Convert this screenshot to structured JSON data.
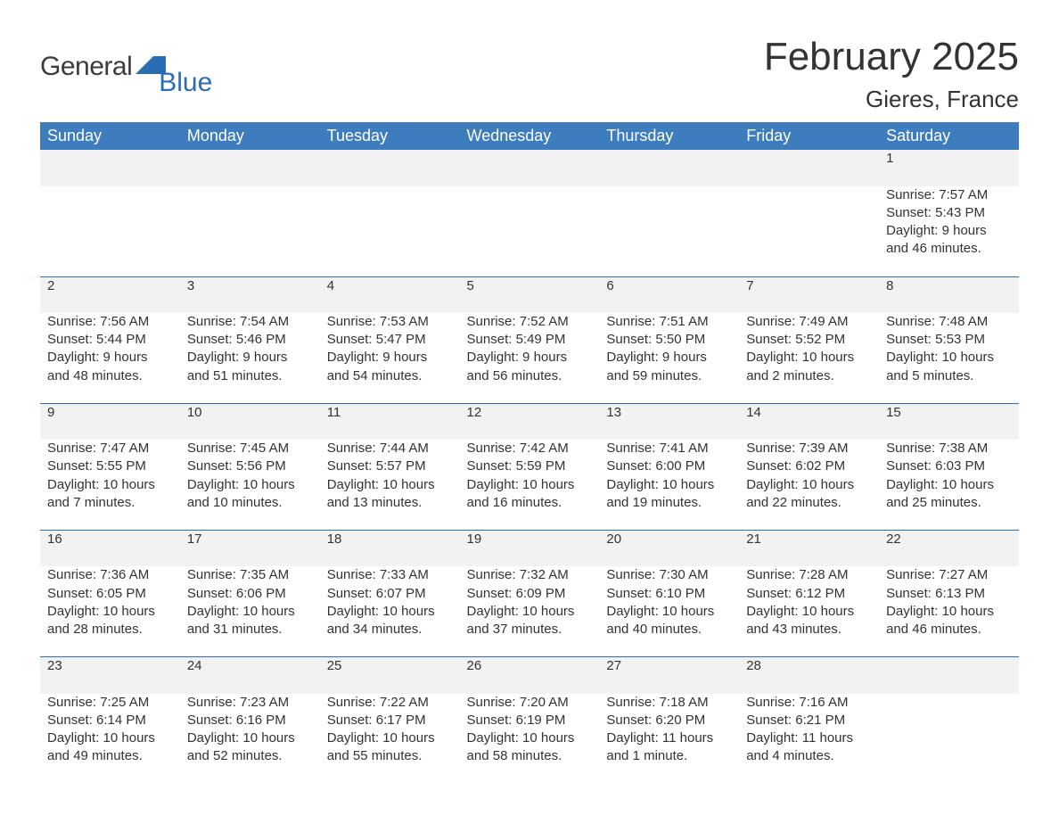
{
  "brand": {
    "part1": "General",
    "part2": "Blue"
  },
  "title": "February 2025",
  "location": "Gieres, France",
  "colors": {
    "header_bg": "#3d7dbd",
    "daynum_bg": "#f2f2f2",
    "rule": "#2a6db4",
    "text": "#333333",
    "brand_blue": "#2a6db4"
  },
  "day_headers": [
    "Sunday",
    "Monday",
    "Tuesday",
    "Wednesday",
    "Thursday",
    "Friday",
    "Saturday"
  ],
  "weeks": [
    [
      null,
      null,
      null,
      null,
      null,
      null,
      {
        "d": "1",
        "sunrise": "Sunrise: 7:57 AM",
        "sunset": "Sunset: 5:43 PM",
        "day": "Daylight: 9 hours and 46 minutes."
      }
    ],
    [
      {
        "d": "2",
        "sunrise": "Sunrise: 7:56 AM",
        "sunset": "Sunset: 5:44 PM",
        "day": "Daylight: 9 hours and 48 minutes."
      },
      {
        "d": "3",
        "sunrise": "Sunrise: 7:54 AM",
        "sunset": "Sunset: 5:46 PM",
        "day": "Daylight: 9 hours and 51 minutes."
      },
      {
        "d": "4",
        "sunrise": "Sunrise: 7:53 AM",
        "sunset": "Sunset: 5:47 PM",
        "day": "Daylight: 9 hours and 54 minutes."
      },
      {
        "d": "5",
        "sunrise": "Sunrise: 7:52 AM",
        "sunset": "Sunset: 5:49 PM",
        "day": "Daylight: 9 hours and 56 minutes."
      },
      {
        "d": "6",
        "sunrise": "Sunrise: 7:51 AM",
        "sunset": "Sunset: 5:50 PM",
        "day": "Daylight: 9 hours and 59 minutes."
      },
      {
        "d": "7",
        "sunrise": "Sunrise: 7:49 AM",
        "sunset": "Sunset: 5:52 PM",
        "day": "Daylight: 10 hours and 2 minutes."
      },
      {
        "d": "8",
        "sunrise": "Sunrise: 7:48 AM",
        "sunset": "Sunset: 5:53 PM",
        "day": "Daylight: 10 hours and 5 minutes."
      }
    ],
    [
      {
        "d": "9",
        "sunrise": "Sunrise: 7:47 AM",
        "sunset": "Sunset: 5:55 PM",
        "day": "Daylight: 10 hours and 7 minutes."
      },
      {
        "d": "10",
        "sunrise": "Sunrise: 7:45 AM",
        "sunset": "Sunset: 5:56 PM",
        "day": "Daylight: 10 hours and 10 minutes."
      },
      {
        "d": "11",
        "sunrise": "Sunrise: 7:44 AM",
        "sunset": "Sunset: 5:57 PM",
        "day": "Daylight: 10 hours and 13 minutes."
      },
      {
        "d": "12",
        "sunrise": "Sunrise: 7:42 AM",
        "sunset": "Sunset: 5:59 PM",
        "day": "Daylight: 10 hours and 16 minutes."
      },
      {
        "d": "13",
        "sunrise": "Sunrise: 7:41 AM",
        "sunset": "Sunset: 6:00 PM",
        "day": "Daylight: 10 hours and 19 minutes."
      },
      {
        "d": "14",
        "sunrise": "Sunrise: 7:39 AM",
        "sunset": "Sunset: 6:02 PM",
        "day": "Daylight: 10 hours and 22 minutes."
      },
      {
        "d": "15",
        "sunrise": "Sunrise: 7:38 AM",
        "sunset": "Sunset: 6:03 PM",
        "day": "Daylight: 10 hours and 25 minutes."
      }
    ],
    [
      {
        "d": "16",
        "sunrise": "Sunrise: 7:36 AM",
        "sunset": "Sunset: 6:05 PM",
        "day": "Daylight: 10 hours and 28 minutes."
      },
      {
        "d": "17",
        "sunrise": "Sunrise: 7:35 AM",
        "sunset": "Sunset: 6:06 PM",
        "day": "Daylight: 10 hours and 31 minutes."
      },
      {
        "d": "18",
        "sunrise": "Sunrise: 7:33 AM",
        "sunset": "Sunset: 6:07 PM",
        "day": "Daylight: 10 hours and 34 minutes."
      },
      {
        "d": "19",
        "sunrise": "Sunrise: 7:32 AM",
        "sunset": "Sunset: 6:09 PM",
        "day": "Daylight: 10 hours and 37 minutes."
      },
      {
        "d": "20",
        "sunrise": "Sunrise: 7:30 AM",
        "sunset": "Sunset: 6:10 PM",
        "day": "Daylight: 10 hours and 40 minutes."
      },
      {
        "d": "21",
        "sunrise": "Sunrise: 7:28 AM",
        "sunset": "Sunset: 6:12 PM",
        "day": "Daylight: 10 hours and 43 minutes."
      },
      {
        "d": "22",
        "sunrise": "Sunrise: 7:27 AM",
        "sunset": "Sunset: 6:13 PM",
        "day": "Daylight: 10 hours and 46 minutes."
      }
    ],
    [
      {
        "d": "23",
        "sunrise": "Sunrise: 7:25 AM",
        "sunset": "Sunset: 6:14 PM",
        "day": "Daylight: 10 hours and 49 minutes."
      },
      {
        "d": "24",
        "sunrise": "Sunrise: 7:23 AM",
        "sunset": "Sunset: 6:16 PM",
        "day": "Daylight: 10 hours and 52 minutes."
      },
      {
        "d": "25",
        "sunrise": "Sunrise: 7:22 AM",
        "sunset": "Sunset: 6:17 PM",
        "day": "Daylight: 10 hours and 55 minutes."
      },
      {
        "d": "26",
        "sunrise": "Sunrise: 7:20 AM",
        "sunset": "Sunset: 6:19 PM",
        "day": "Daylight: 10 hours and 58 minutes."
      },
      {
        "d": "27",
        "sunrise": "Sunrise: 7:18 AM",
        "sunset": "Sunset: 6:20 PM",
        "day": "Daylight: 11 hours and 1 minute."
      },
      {
        "d": "28",
        "sunrise": "Sunrise: 7:16 AM",
        "sunset": "Sunset: 6:21 PM",
        "day": "Daylight: 11 hours and 4 minutes."
      },
      null
    ]
  ]
}
